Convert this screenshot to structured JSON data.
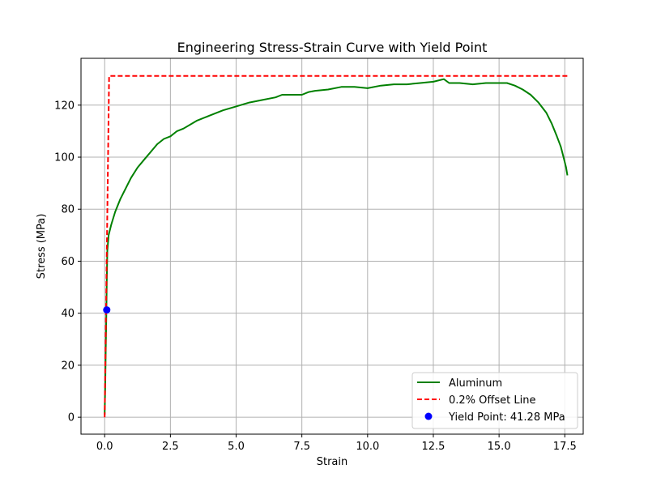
{
  "chart_data": {
    "type": "line",
    "title": "Engineering Stress-Strain Curve with Yield Point",
    "xlabel": "Strain",
    "ylabel": "Stress (MPa)",
    "xlim": [
      -0.9,
      18.2
    ],
    "ylim": [
      -6.5,
      138
    ],
    "xticks": [
      0.0,
      2.5,
      5.0,
      7.5,
      10.0,
      12.5,
      15.0,
      17.5
    ],
    "xtick_labels": [
      "0.0",
      "2.5",
      "5.0",
      "7.5",
      "10.0",
      "12.5",
      "15.0",
      "17.5"
    ],
    "yticks": [
      0,
      20,
      40,
      60,
      80,
      100,
      120
    ],
    "ytick_labels": [
      "0",
      "20",
      "40",
      "60",
      "80",
      "100",
      "120"
    ],
    "grid": true,
    "legend_position": "lower-right",
    "series": [
      {
        "name": "Aluminum",
        "style": "solid",
        "color": "#008000",
        "x": [
          0.0,
          0.02,
          0.04,
          0.06,
          0.08,
          0.1,
          0.15,
          0.25,
          0.4,
          0.6,
          0.8,
          1.0,
          1.25,
          1.5,
          1.75,
          2.0,
          2.25,
          2.5,
          2.75,
          3.0,
          3.5,
          4.0,
          4.5,
          5.0,
          5.5,
          6.0,
          6.5,
          6.75,
          7.0,
          7.5,
          7.75,
          8.0,
          8.5,
          9.0,
          9.5,
          10.0,
          10.5,
          11.0,
          11.5,
          12.0,
          12.5,
          12.9,
          13.1,
          13.5,
          14.0,
          14.5,
          15.0,
          15.3,
          15.6,
          15.9,
          16.2,
          16.5,
          16.8,
          17.0,
          17.2,
          17.35,
          17.45,
          17.55,
          17.6
        ],
        "y": [
          1,
          12,
          25,
          38,
          52,
          64,
          70,
          74,
          79,
          84,
          88,
          92,
          96,
          99,
          102,
          105,
          107,
          108,
          110,
          111,
          114,
          116,
          118,
          119.5,
          121,
          122,
          123,
          124,
          124,
          124,
          125,
          125.5,
          126,
          127,
          127,
          126.5,
          127.5,
          128,
          128,
          128.5,
          129,
          130,
          128.5,
          128.5,
          128,
          128.5,
          128.5,
          128.5,
          127.5,
          126,
          124,
          121,
          117,
          113,
          108,
          104,
          100,
          96,
          93
        ]
      },
      {
        "name": "0.2% Offset Line",
        "style": "dashed",
        "color": "#ff0000",
        "x": [
          0.0,
          0.17,
          17.6
        ],
        "y": [
          0.0,
          131.2,
          131.2
        ]
      }
    ],
    "points": [
      {
        "name": "Yield Point: 41.28 MPa",
        "color": "#0000ff",
        "x": 0.08,
        "y": 41.28
      }
    ]
  }
}
